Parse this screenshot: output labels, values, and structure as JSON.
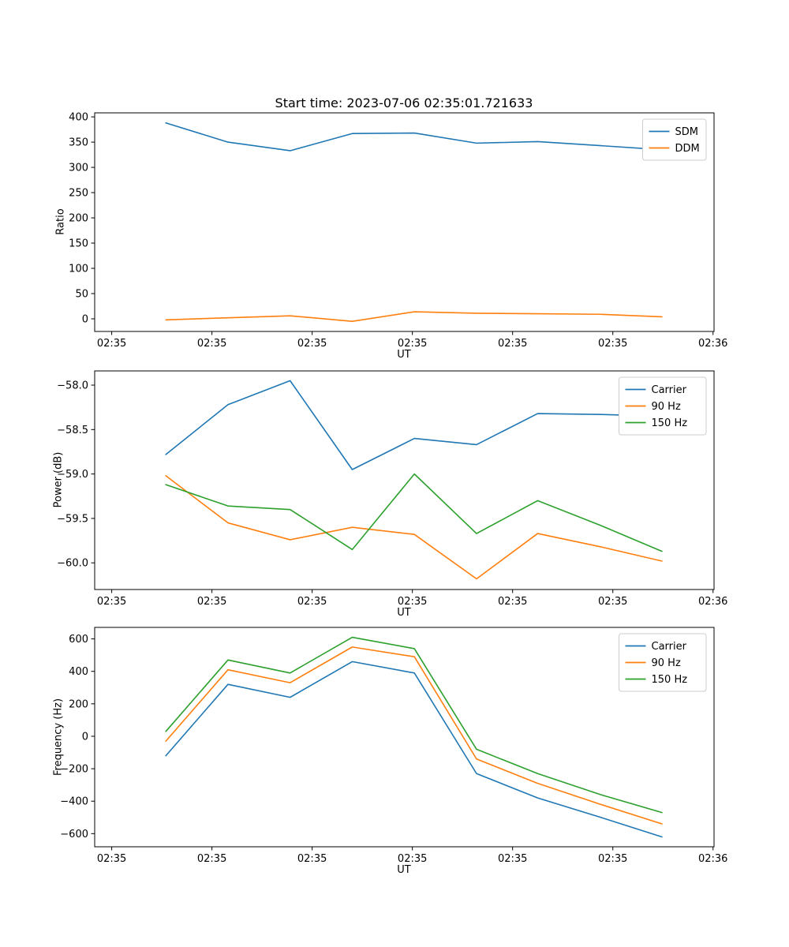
{
  "figure": {
    "title": "Start time: 2023-07-06 02:35:01.721633",
    "background": "#ffffff"
  },
  "colors": {
    "blue": "#1f77b4",
    "orange": "#ff7f0e",
    "green": "#2ca02c",
    "legend_border": "#cccccc"
  },
  "chart_data": [
    {
      "type": "line",
      "title": "Start time: 2023-07-06 02:35:01.721633",
      "xlabel": "UT",
      "ylabel": "Ratio",
      "x_units": "seconds after 02:35:00 UT",
      "x": [
        5.4,
        11.6,
        17.8,
        24.0,
        30.2,
        36.4,
        42.5,
        48.8,
        54.9
      ],
      "xlim": [
        -1.7,
        60.1
      ],
      "xticks": [
        0,
        10,
        20,
        30,
        40,
        50,
        60
      ],
      "xtick_labels": [
        "02:35",
        "02:35",
        "02:35",
        "02:35",
        "02:35",
        "02:35",
        "02:36"
      ],
      "ylim": [
        -25,
        408
      ],
      "yticks": [
        0,
        50,
        100,
        150,
        200,
        250,
        300,
        350,
        400
      ],
      "ytick_labels": [
        "0",
        "50",
        "100",
        "150",
        "200",
        "250",
        "300",
        "350",
        "400"
      ],
      "grid": false,
      "legend_position": "upper right",
      "series": [
        {
          "name": "SDM",
          "color": "#1f77b4",
          "values": [
            388,
            350,
            333,
            367,
            368,
            348,
            351,
            343,
            335
          ]
        },
        {
          "name": "DDM",
          "color": "#ff7f0e",
          "values": [
            -2,
            2,
            6,
            -5,
            14,
            11,
            10,
            9,
            4
          ]
        }
      ]
    },
    {
      "type": "line",
      "title": "",
      "xlabel": "UT",
      "ylabel": "Power (dB)",
      "x_units": "seconds after 02:35:00 UT",
      "x": [
        5.4,
        11.6,
        17.8,
        24.0,
        30.2,
        36.4,
        42.5,
        48.8,
        54.9
      ],
      "xlim": [
        -1.7,
        60.1
      ],
      "xticks": [
        0,
        10,
        20,
        30,
        40,
        50,
        60
      ],
      "xtick_labels": [
        "02:35",
        "02:35",
        "02:35",
        "02:35",
        "02:35",
        "02:35",
        "02:36"
      ],
      "ylim": [
        -60.3,
        -57.84
      ],
      "yticks": [
        -58.0,
        -58.5,
        -59.0,
        -59.5,
        -60.0
      ],
      "ytick_labels": [
        "−58.0",
        "−58.5",
        "−59.0",
        "−59.5",
        "−60.0"
      ],
      "grid": false,
      "legend_position": "upper right",
      "series": [
        {
          "name": "Carrier",
          "color": "#1f77b4",
          "values": [
            -58.78,
            -58.22,
            -57.95,
            -58.95,
            -58.6,
            -58.67,
            -58.32,
            -58.33,
            -58.35
          ]
        },
        {
          "name": "90 Hz",
          "color": "#ff7f0e",
          "values": [
            -59.02,
            -59.55,
            -59.74,
            -59.6,
            -59.68,
            -60.18,
            -59.67,
            -59.82,
            -59.98
          ]
        },
        {
          "name": "150 Hz",
          "color": "#2ca02c",
          "values": [
            -59.12,
            -59.36,
            -59.4,
            -59.85,
            -59.0,
            -59.67,
            -59.3,
            -59.58,
            -59.87
          ]
        }
      ]
    },
    {
      "type": "line",
      "title": "",
      "xlabel": "UT",
      "ylabel": "Frequency (Hz)",
      "x_units": "seconds after 02:35:00 UT",
      "x": [
        5.4,
        11.6,
        17.8,
        24.0,
        30.2,
        36.4,
        42.5,
        48.8,
        54.9
      ],
      "xlim": [
        -1.7,
        60.1
      ],
      "xticks": [
        0,
        10,
        20,
        30,
        40,
        50,
        60
      ],
      "xtick_labels": [
        "02:35",
        "02:35",
        "02:35",
        "02:35",
        "02:35",
        "02:35",
        "02:36"
      ],
      "ylim": [
        -681,
        671
      ],
      "yticks": [
        -600,
        -400,
        -200,
        0,
        200,
        400,
        600
      ],
      "ytick_labels": [
        "−600",
        "−400",
        "−200",
        "0",
        "200",
        "400",
        "600"
      ],
      "grid": false,
      "legend_position": "upper right",
      "series": [
        {
          "name": "Carrier",
          "color": "#1f77b4",
          "values": [
            -120,
            320,
            240,
            460,
            390,
            -230,
            -380,
            -500,
            -620
          ]
        },
        {
          "name": "90 Hz",
          "color": "#ff7f0e",
          "values": [
            -30,
            410,
            330,
            550,
            490,
            -140,
            -290,
            -420,
            -540
          ]
        },
        {
          "name": "150 Hz",
          "color": "#2ca02c",
          "values": [
            30,
            470,
            390,
            610,
            540,
            -80,
            -230,
            -360,
            -470
          ]
        }
      ]
    }
  ]
}
